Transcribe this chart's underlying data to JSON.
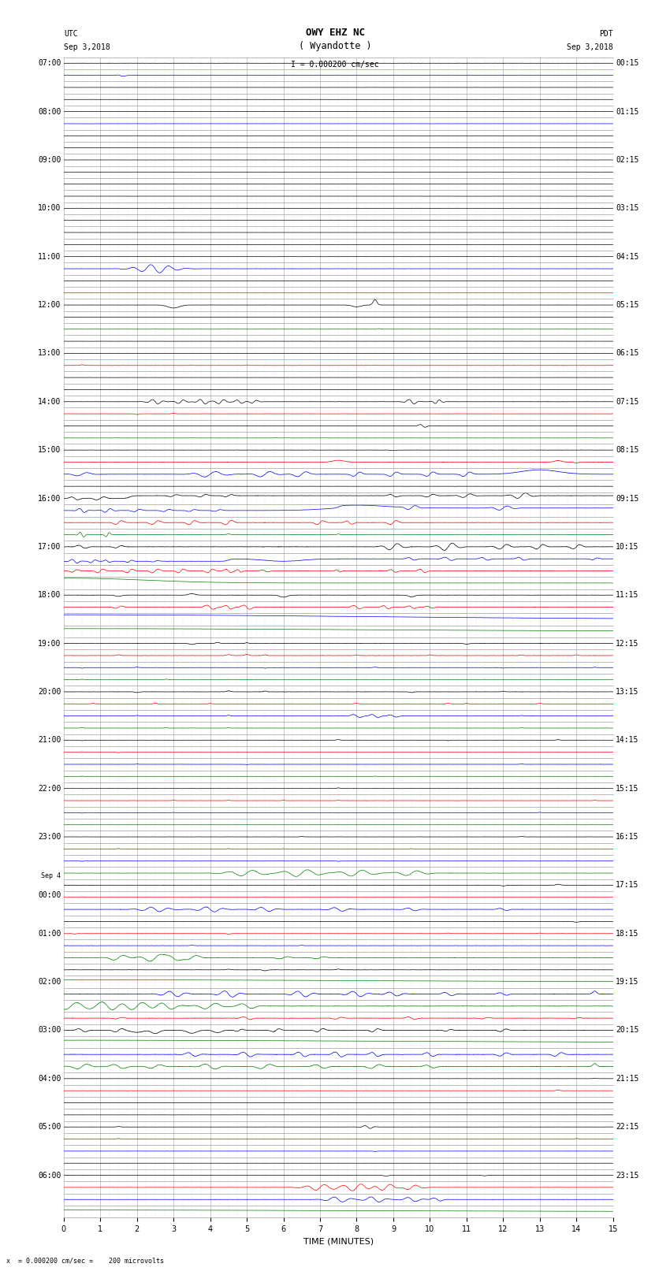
{
  "title_line1": "OWY EHZ NC",
  "title_line2": "( Wyandotte )",
  "scale_text": "I = 0.000200 cm/sec",
  "footer_text": "x  = 0.000200 cm/sec =    200 microvolts",
  "utc_label": "UTC",
  "utc_date": "Sep 3,2018",
  "pdt_label": "PDT",
  "pdt_date": "Sep 3,2018",
  "xlabel": "TIME (MINUTES)",
  "xlim": [
    0,
    15
  ],
  "bg_color": "#ffffff",
  "grid_color": "#808080",
  "figsize": [
    8.5,
    16.13
  ],
  "dpi": 100,
  "title_fontsize": 9,
  "label_fontsize": 7,
  "tick_fontsize": 7,
  "row_label_fontsize": 7,
  "utc_times": [
    "07:00",
    "08:00",
    "09:00",
    "10:00",
    "11:00",
    "12:00",
    "13:00",
    "14:00",
    "15:00",
    "16:00",
    "17:00",
    "18:00",
    "19:00",
    "20:00",
    "21:00",
    "22:00",
    "23:00",
    "Sep 4\n00:00",
    "01:00",
    "02:00",
    "03:00",
    "04:00",
    "05:00",
    "06:00"
  ],
  "pdt_times": [
    "00:15",
    "01:15",
    "02:15",
    "03:15",
    "04:15",
    "05:15",
    "06:15",
    "07:15",
    "08:15",
    "09:15",
    "10:15",
    "11:15",
    "12:15",
    "13:15",
    "14:15",
    "15:15",
    "16:15",
    "17:15",
    "18:15",
    "19:15",
    "20:15",
    "21:15",
    "22:15",
    "23:15"
  ],
  "num_hours": 24,
  "subrows_per_hour": 4
}
